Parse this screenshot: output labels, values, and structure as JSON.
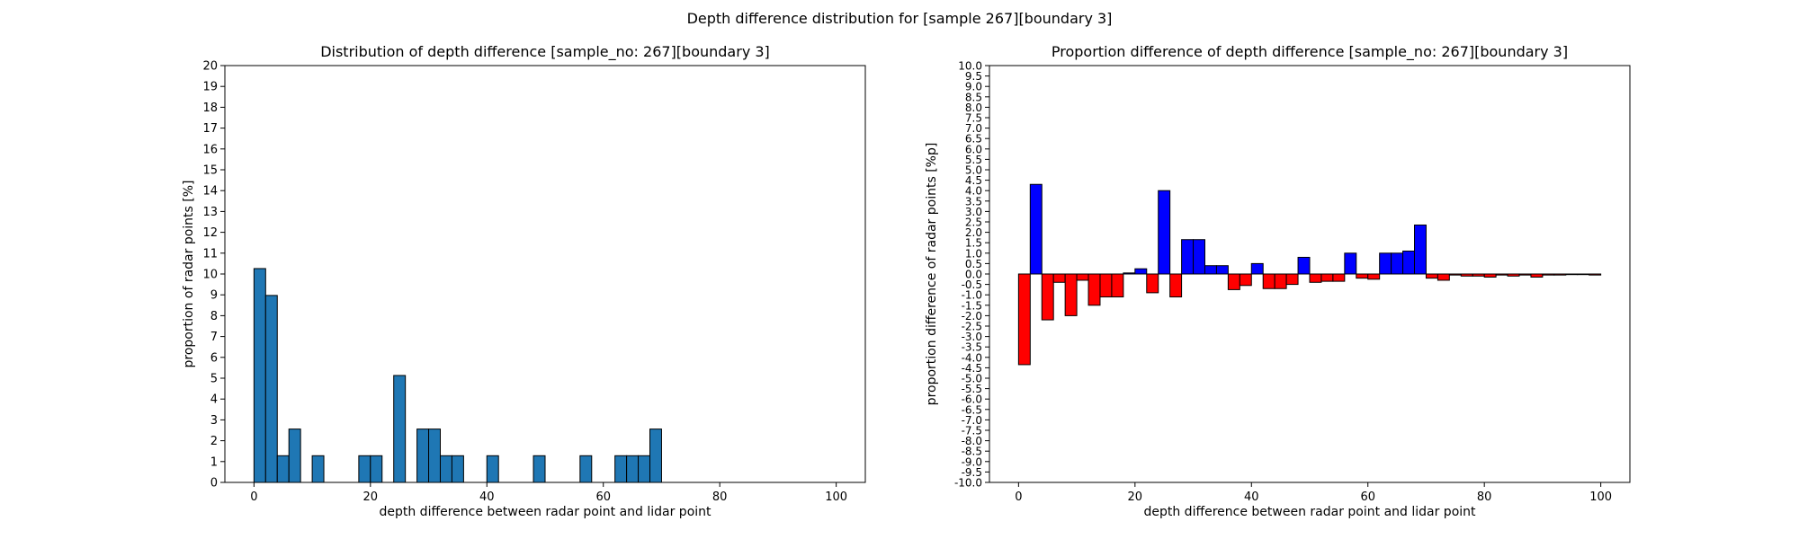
{
  "figure": {
    "suptitle": "Depth difference distribution for [sample 267][boundary 3]"
  },
  "chart_data": [
    {
      "type": "bar",
      "title": "Distribution of depth difference [sample_no: 267][boundary 3]",
      "xlabel": "depth difference between radar point and lidar point",
      "ylabel": "proportion of radar points [%]",
      "xlim": [
        -5,
        105
      ],
      "ylim": [
        0,
        20
      ],
      "x_ticks": [
        0,
        20,
        40,
        60,
        80,
        100
      ],
      "y_ticks": [
        0,
        1,
        2,
        3,
        4,
        5,
        6,
        7,
        8,
        9,
        10,
        11,
        12,
        13,
        14,
        15,
        16,
        17,
        18,
        19,
        20
      ],
      "bin_width": 2,
      "bar_color": "#1f77b4",
      "edge_color": "#000000",
      "bins": [
        {
          "x": 1,
          "value": 10.26
        },
        {
          "x": 3,
          "value": 8.97
        },
        {
          "x": 5,
          "value": 1.28
        },
        {
          "x": 7,
          "value": 2.56
        },
        {
          "x": 11,
          "value": 1.28
        },
        {
          "x": 19,
          "value": 1.28
        },
        {
          "x": 21,
          "value": 1.28
        },
        {
          "x": 25,
          "value": 5.13
        },
        {
          "x": 29,
          "value": 2.56
        },
        {
          "x": 31,
          "value": 2.56
        },
        {
          "x": 33,
          "value": 1.28
        },
        {
          "x": 35,
          "value": 1.28
        },
        {
          "x": 41,
          "value": 1.28
        },
        {
          "x": 49,
          "value": 1.28
        },
        {
          "x": 57,
          "value": 1.28
        },
        {
          "x": 63,
          "value": 1.28
        },
        {
          "x": 65,
          "value": 1.28
        },
        {
          "x": 67,
          "value": 1.28
        },
        {
          "x": 69,
          "value": 2.56
        }
      ]
    },
    {
      "type": "bar",
      "title": "Proportion difference of depth difference [sample_no: 267][boundary 3]",
      "xlabel": "depth difference between radar point and lidar point",
      "ylabel": "proportion difference of radar points [%p]",
      "xlim": [
        -5,
        105
      ],
      "ylim": [
        -10,
        10
      ],
      "x_ticks": [
        0,
        20,
        40,
        60,
        80,
        100
      ],
      "y_ticks": [
        "-10.0",
        "-9.5",
        "-9.0",
        "-8.5",
        "-8.0",
        "-7.5",
        "-7.0",
        "-6.5",
        "-6.0",
        "-5.5",
        "-5.0",
        "-4.5",
        "-4.0",
        "-3.5",
        "-3.0",
        "-2.5",
        "-2.0",
        "-1.5",
        "-1.0",
        "-0.5",
        "0.0",
        "0.5",
        "1.0",
        "1.5",
        "2.0",
        "2.5",
        "3.0",
        "3.5",
        "4.0",
        "4.5",
        "5.0",
        "5.5",
        "6.0",
        "6.5",
        "7.0",
        "7.5",
        "8.0",
        "8.5",
        "9.0",
        "9.5",
        "10.0"
      ],
      "bin_width": 2,
      "positive_color": "#0000ff",
      "negative_color": "#ff0000",
      "edge_color": "#000000",
      "bins": [
        {
          "x": 1,
          "value": -4.35
        },
        {
          "x": 3,
          "value": 4.3
        },
        {
          "x": 5,
          "value": -2.2
        },
        {
          "x": 7,
          "value": -0.4
        },
        {
          "x": 9,
          "value": -2.0
        },
        {
          "x": 11,
          "value": -0.3
        },
        {
          "x": 13,
          "value": -1.5
        },
        {
          "x": 15,
          "value": -1.1
        },
        {
          "x": 17,
          "value": -1.1
        },
        {
          "x": 19,
          "value": 0.05
        },
        {
          "x": 21,
          "value": 0.25
        },
        {
          "x": 23,
          "value": -0.9
        },
        {
          "x": 25,
          "value": 4.0
        },
        {
          "x": 27,
          "value": -1.1
        },
        {
          "x": 29,
          "value": 1.65
        },
        {
          "x": 31,
          "value": 1.65
        },
        {
          "x": 33,
          "value": 0.4
        },
        {
          "x": 35,
          "value": 0.4
        },
        {
          "x": 37,
          "value": -0.75
        },
        {
          "x": 39,
          "value": -0.55
        },
        {
          "x": 41,
          "value": 0.5
        },
        {
          "x": 43,
          "value": -0.7
        },
        {
          "x": 45,
          "value": -0.7
        },
        {
          "x": 47,
          "value": -0.5
        },
        {
          "x": 49,
          "value": 0.8
        },
        {
          "x": 51,
          "value": -0.4
        },
        {
          "x": 53,
          "value": -0.35
        },
        {
          "x": 55,
          "value": -0.35
        },
        {
          "x": 57,
          "value": 1.0
        },
        {
          "x": 59,
          "value": -0.2
        },
        {
          "x": 61,
          "value": -0.25
        },
        {
          "x": 63,
          "value": 1.0
        },
        {
          "x": 65,
          "value": 1.0
        },
        {
          "x": 67,
          "value": 1.1
        },
        {
          "x": 69,
          "value": 2.35
        },
        {
          "x": 71,
          "value": -0.2
        },
        {
          "x": 73,
          "value": -0.3
        },
        {
          "x": 75,
          "value": -0.05
        },
        {
          "x": 77,
          "value": -0.1
        },
        {
          "x": 79,
          "value": -0.1
        },
        {
          "x": 81,
          "value": -0.15
        },
        {
          "x": 83,
          "value": -0.05
        },
        {
          "x": 85,
          "value": -0.1
        },
        {
          "x": 87,
          "value": -0.05
        },
        {
          "x": 89,
          "value": -0.15
        },
        {
          "x": 91,
          "value": -0.05
        },
        {
          "x": 93,
          "value": -0.05
        },
        {
          "x": 95,
          "value": -0.03
        },
        {
          "x": 97,
          "value": -0.03
        },
        {
          "x": 99,
          "value": -0.05
        }
      ]
    }
  ]
}
